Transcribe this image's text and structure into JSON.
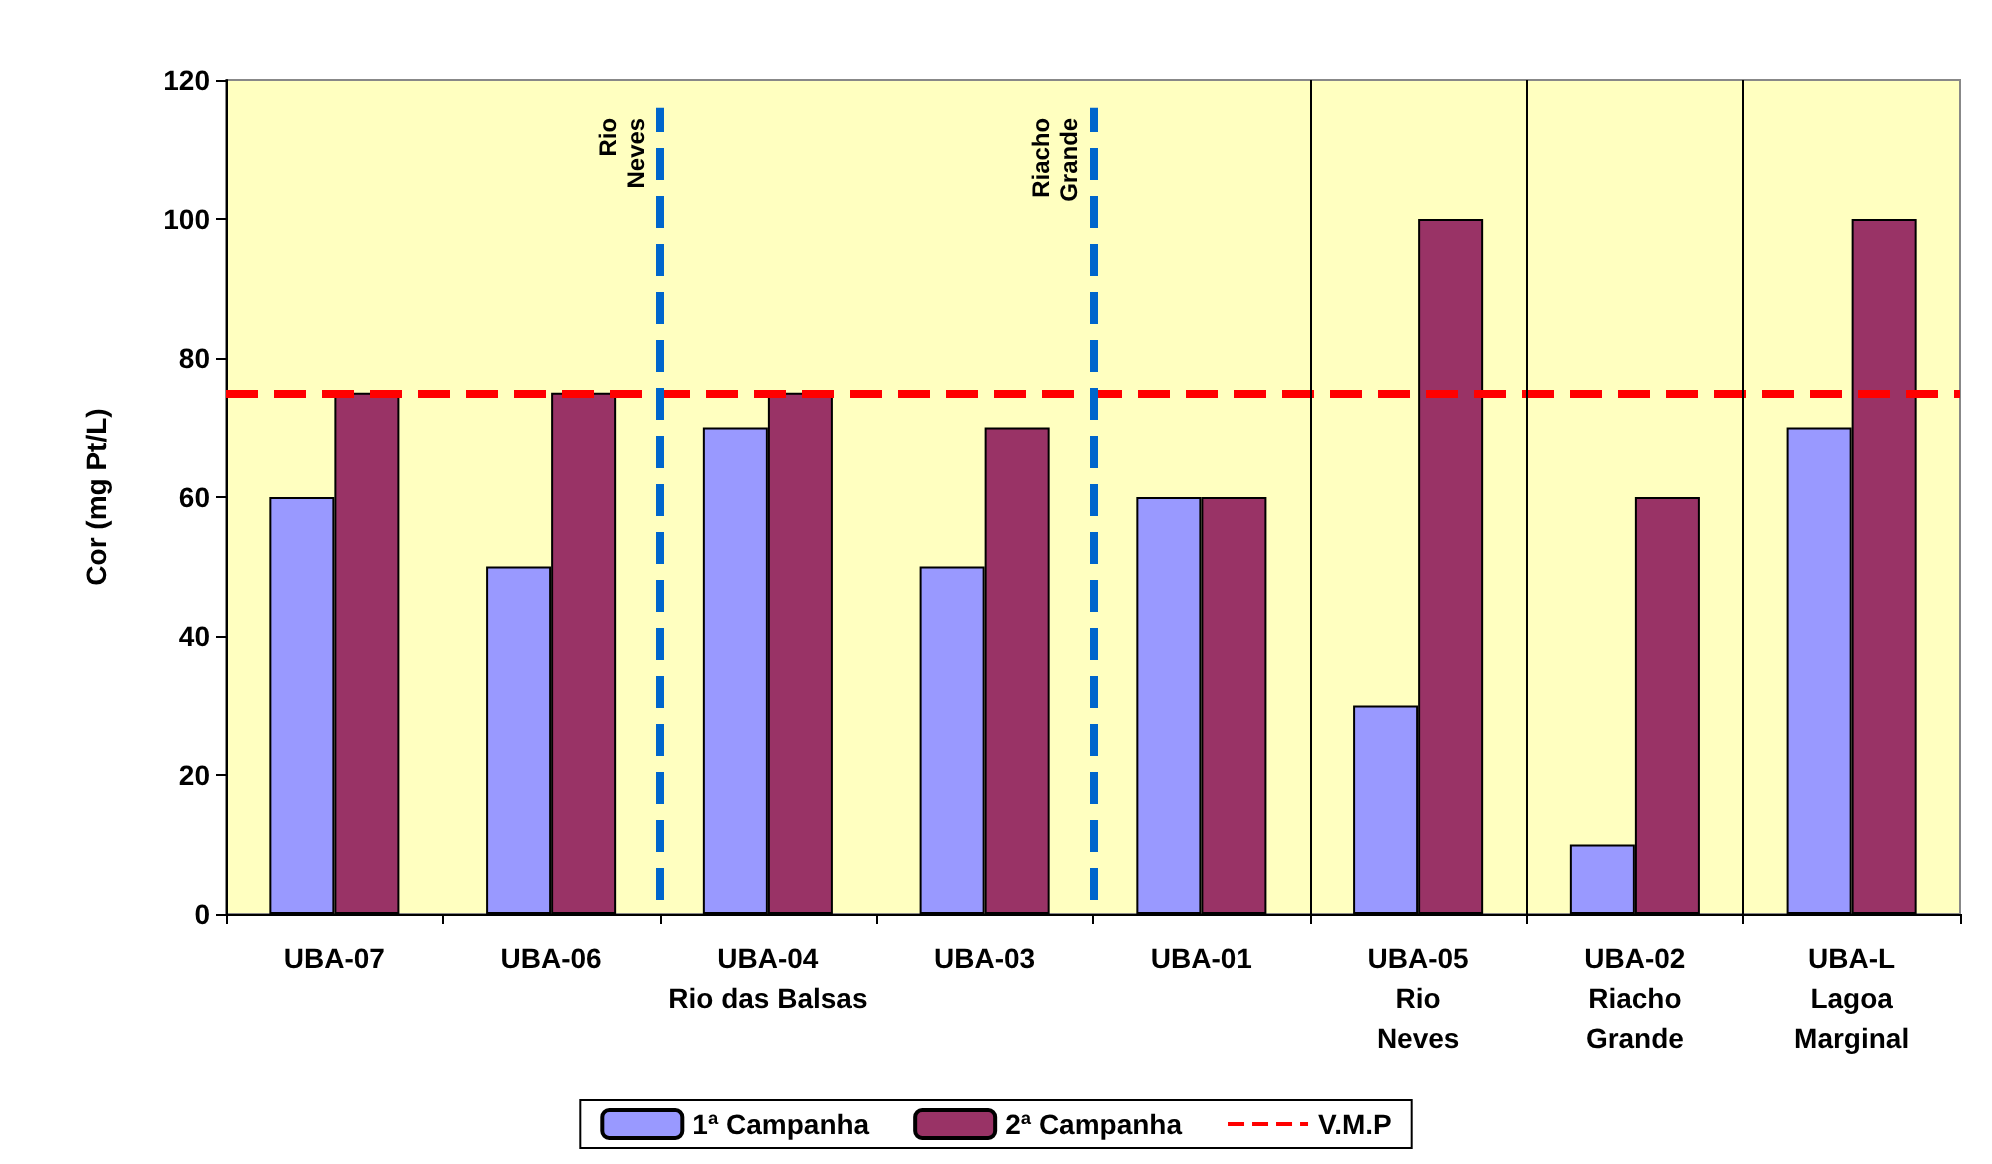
{
  "chart_data": {
    "type": "bar",
    "ylabel": "Cor (mg Pt/L)",
    "categories": [
      "UBA-07",
      "UBA-06",
      "UBA-04\nRio das Balsas",
      "UBA-03",
      "UBA-01",
      "UBA-05\nRio\nNeves",
      "UBA-02\nRiacho\nGrande",
      "UBA-L\nLagoa\nMarginal"
    ],
    "series": [
      {
        "name": "1ª Campanha",
        "color": "#9999ff",
        "values": [
          60,
          50,
          70,
          50,
          60,
          30,
          10,
          70
        ]
      },
      {
        "name": "2ª Campanha",
        "color": "#993366",
        "values": [
          75,
          75,
          75,
          70,
          60,
          100,
          60,
          100
        ]
      }
    ],
    "ylim": [
      0,
      120
    ],
    "yticks": [
      0,
      20,
      40,
      60,
      80,
      100,
      120
    ],
    "grid": false,
    "legend": "bottom",
    "ref_lines": [
      {
        "axis": "y",
        "value": 75,
        "label": "V.M.P",
        "color": "#ff0000",
        "line_style": "dashed"
      }
    ],
    "annotations": [
      "Rio\nNeves",
      "Riacho\nGrande"
    ]
  }
}
